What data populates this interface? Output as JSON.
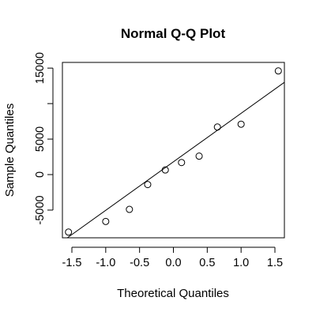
{
  "chart_data": {
    "type": "scatter",
    "title": "Normal Q-Q Plot",
    "xlabel": "Theoretical Quantiles",
    "ylabel": "Sample Quantiles",
    "xlim": [
      -1.64,
      1.64
    ],
    "ylim": [
      -8900,
      15800
    ],
    "x_ticks": [
      -1.5,
      -1.0,
      -0.5,
      0.0,
      0.5,
      1.0,
      1.5
    ],
    "x_tick_labels": [
      "-1.5",
      "-1.0",
      "-0.5",
      "0.0",
      "0.5",
      "1.0",
      "1.5"
    ],
    "y_ticks": [
      -5000,
      0,
      5000,
      15000
    ],
    "y_tick_labels": [
      "-5000",
      "0",
      "5000",
      "15000"
    ],
    "y_tick_marks": [
      -5000,
      0,
      5000,
      10000,
      15000
    ],
    "grid": false,
    "points": [
      {
        "x": -1.55,
        "y": -8100
      },
      {
        "x": -1.0,
        "y": -6600
      },
      {
        "x": -0.65,
        "y": -4900
      },
      {
        "x": -0.38,
        "y": -1400
      },
      {
        "x": -0.12,
        "y": 650
      },
      {
        "x": 0.12,
        "y": 1700
      },
      {
        "x": 0.38,
        "y": 2600
      },
      {
        "x": 0.65,
        "y": 6700
      },
      {
        "x": 1.0,
        "y": 7100
      },
      {
        "x": 1.55,
        "y": 14600
      }
    ],
    "reference_line": {
      "x": [
        -1.64,
        1.64
      ],
      "y": [
        -9400,
        13000
      ]
    }
  }
}
